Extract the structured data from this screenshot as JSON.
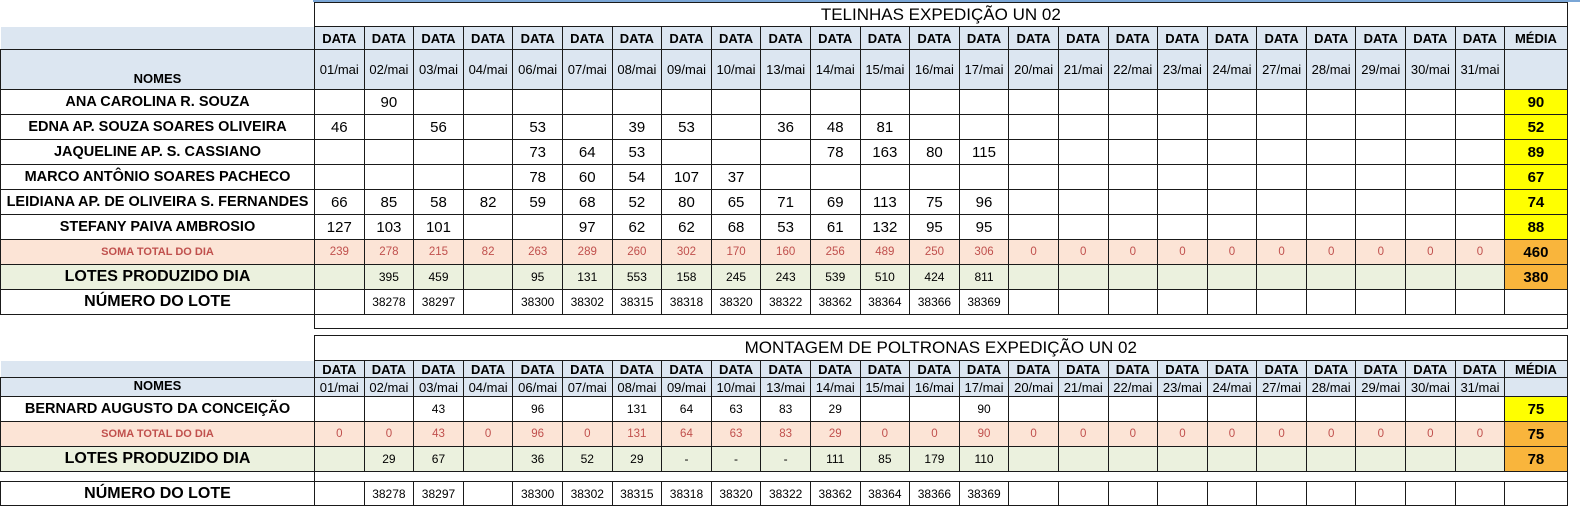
{
  "colors": {
    "title": "#e8161c",
    "header_bg": "#dce6f1",
    "soma_bg": "#fce4d6",
    "soma_text": "#c0504d",
    "lotes_bg": "#ebf1de",
    "media_yellow": "#ffff00",
    "media_orange": "#f9b53c"
  },
  "section1": {
    "title": "TELINHAS EXPEDIÇÃO UN 02",
    "data_label": "DATA",
    "media_label": "MÉDIA",
    "names_label": "NOMES",
    "dates": [
      "01/mai",
      "02/mai",
      "03/mai",
      "04/mai",
      "06/mai",
      "07/mai",
      "08/mai",
      "09/mai",
      "10/mai",
      "13/mai",
      "14/mai",
      "15/mai",
      "16/mai",
      "17/mai",
      "20/mai",
      "21/mai",
      "22/mai",
      "23/mai",
      "24/mai",
      "27/mai",
      "28/mai",
      "29/mai",
      "30/mai",
      "31/mai"
    ],
    "rows": [
      {
        "name": "ANA CAROLINA R. SOUZA",
        "values": [
          "",
          "90",
          "",
          "",
          "",
          "",
          "",
          "",
          "",
          "",
          "",
          "",
          "",
          "",
          "",
          "",
          "",
          "",
          "",
          "",
          "",
          "",
          "",
          ""
        ],
        "media": "90"
      },
      {
        "name": "EDNA AP. SOUZA SOARES OLIVEIRA",
        "values": [
          "46",
          "",
          "56",
          "",
          "53",
          "",
          "39",
          "53",
          "",
          "36",
          "48",
          "81",
          "",
          "",
          "",
          "",
          "",
          "",
          "",
          "",
          "",
          "",
          "",
          ""
        ],
        "media": "52"
      },
      {
        "name": "JAQUELINE AP.  S. CASSIANO",
        "values": [
          "",
          "",
          "",
          "",
          "73",
          "64",
          "53",
          "",
          "",
          "",
          "78",
          "163",
          "80",
          "115",
          "",
          "",
          "",
          "",
          "",
          "",
          "",
          "",
          "",
          ""
        ],
        "media": "89"
      },
      {
        "name": "MARCO ANTÔNIO SOARES PACHECO",
        "values": [
          "",
          "",
          "",
          "",
          "78",
          "60",
          "54",
          "107",
          "37",
          "",
          "",
          "",
          "",
          "",
          "",
          "",
          "",
          "",
          "",
          "",
          "",
          "",
          "",
          ""
        ],
        "media": "67"
      },
      {
        "name": "LEIDIANA AP. DE OLIVEIRA S. FERNANDES",
        "values": [
          "66",
          "85",
          "58",
          "82",
          "59",
          "68",
          "52",
          "80",
          "65",
          "71",
          "69",
          "113",
          "75",
          "96",
          "",
          "",
          "",
          "",
          "",
          "",
          "",
          "",
          "",
          ""
        ],
        "media": "74"
      },
      {
        "name": "STEFANY PAIVA AMBROSIO",
        "values": [
          "127",
          "103",
          "101",
          "",
          "",
          "97",
          "62",
          "62",
          "68",
          "53",
          "61",
          "132",
          "95",
          "95",
          "",
          "",
          "",
          "",
          "",
          "",
          "",
          "",
          "",
          ""
        ],
        "media": "88"
      }
    ],
    "soma": {
      "label": "SOMA TOTAL DO DIA",
      "values": [
        "239",
        "278",
        "215",
        "82",
        "263",
        "289",
        "260",
        "302",
        "170",
        "160",
        "256",
        "489",
        "250",
        "306",
        "0",
        "0",
        "0",
        "0",
        "0",
        "0",
        "0",
        "0",
        "0",
        "0"
      ],
      "media": "460"
    },
    "lotes": {
      "label": "LOTES PRODUZIDO DIA",
      "values": [
        "",
        "395",
        "459",
        "",
        "95",
        "131",
        "553",
        "158",
        "245",
        "243",
        "539",
        "510",
        "424",
        "811",
        "",
        "",
        "",
        "",
        "",
        "",
        "",
        "",
        "",
        ""
      ],
      "media": "380"
    },
    "numero": {
      "label": "NÚMERO DO LOTE",
      "values": [
        "",
        "38278",
        "38297",
        "",
        "38300",
        "38302",
        "38315",
        "38318",
        "38320",
        "38322",
        "38362",
        "38364",
        "38366",
        "38369",
        "",
        "",
        "",
        "",
        "",
        "",
        "",
        "",
        "",
        ""
      ]
    }
  },
  "section2": {
    "title": "MONTAGEM DE POLTRONAS EXPEDIÇÃO UN 02",
    "data_label": "DATA",
    "media_label": "MÉDIA",
    "names_label": "NOMES",
    "dates": [
      "01/mai",
      "02/mai",
      "03/mai",
      "04/mai",
      "06/mai",
      "07/mai",
      "08/mai",
      "09/mai",
      "10/mai",
      "13/mai",
      "14/mai",
      "15/mai",
      "16/mai",
      "17/mai",
      "20/mai",
      "21/mai",
      "22/mai",
      "23/mai",
      "24/mai",
      "27/mai",
      "28/mai",
      "29/mai",
      "30/mai",
      "31/mai"
    ],
    "rows": [
      {
        "name": "BERNARD AUGUSTO DA CONCEIÇÃO",
        "values": [
          "",
          "",
          "43",
          "",
          "96",
          "",
          "131",
          "64",
          "63",
          "83",
          "29",
          "",
          "",
          "90",
          "",
          "",
          "",
          "",
          "",
          "",
          "",
          "",
          "",
          ""
        ],
        "media": "75"
      }
    ],
    "soma": {
      "label": "SOMA TOTAL DO DIA",
      "values": [
        "0",
        "0",
        "43",
        "0",
        "96",
        "0",
        "131",
        "64",
        "63",
        "83",
        "29",
        "0",
        "0",
        "90",
        "0",
        "0",
        "0",
        "0",
        "0",
        "0",
        "0",
        "0",
        "0",
        "0"
      ],
      "media": "75"
    },
    "lotes": {
      "label": "LOTES PRODUZIDO DIA",
      "values": [
        "",
        "29",
        "67",
        "",
        "36",
        "52",
        "29",
        "-",
        "-",
        "-",
        "111",
        "85",
        "179",
        "110",
        "",
        "",
        "",
        "",
        "",
        "",
        "",
        "",
        "",
        ""
      ],
      "media": "78"
    },
    "numero": {
      "label": "NÚMERO DO LOTE",
      "values": [
        "",
        "38278",
        "38297",
        "",
        "38300",
        "38302",
        "38315",
        "38318",
        "38320",
        "38322",
        "38362",
        "38364",
        "38366",
        "38369",
        "",
        "",
        "",
        "",
        "",
        "",
        "",
        "",
        "",
        ""
      ]
    }
  }
}
